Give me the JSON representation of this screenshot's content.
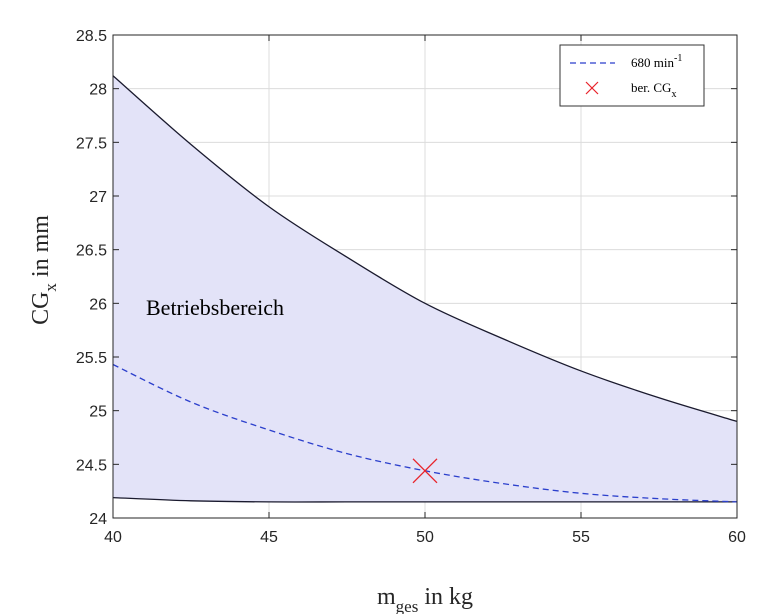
{
  "chart_data": {
    "type": "line",
    "xlabel": {
      "main": "m",
      "sub": "ges",
      "rest": " in kg"
    },
    "ylabel": {
      "main": "CG",
      "sub": "x",
      "rest": " in mm"
    },
    "xlim": [
      40,
      60
    ],
    "ylim": [
      24,
      28.5
    ],
    "xticks": [
      40,
      45,
      50,
      55,
      60
    ],
    "yticks": [
      24,
      24.5,
      25,
      25.5,
      26,
      26.5,
      27,
      27.5,
      28,
      28.5
    ],
    "grid": true,
    "legend_position": "top-right",
    "region": {
      "label": "Betriebsbereich",
      "upper": {
        "x": [
          40,
          42.5,
          45,
          47.5,
          50,
          52.5,
          55,
          57.5,
          60
        ],
        "y": [
          28.12,
          27.48,
          26.9,
          26.43,
          26.0,
          25.67,
          25.37,
          25.12,
          24.9
        ]
      },
      "lower": {
        "x": [
          40,
          42.5,
          45,
          47.5,
          50,
          52.5,
          55,
          57.5,
          60
        ],
        "y": [
          24.19,
          24.16,
          24.15,
          24.15,
          24.15,
          24.15,
          24.15,
          24.15,
          24.15
        ]
      },
      "fill_color": "#e3e3f8",
      "line_color": "#1a1a2e"
    },
    "series": [
      {
        "name": {
          "main": "680 min",
          "sup": "-1"
        },
        "style": "dashed",
        "color": "#2b3fcc",
        "x": [
          40,
          42.5,
          45,
          47.5,
          50,
          52.5,
          55,
          57.5,
          60
        ],
        "y": [
          25.43,
          25.08,
          24.82,
          24.6,
          24.44,
          24.32,
          24.23,
          24.18,
          24.15
        ]
      }
    ],
    "markers": [
      {
        "name": {
          "main": "ber. CG",
          "sub": "x"
        },
        "symbol": "x",
        "color": "#e8222a",
        "x": 50,
        "y": 24.44
      }
    ]
  }
}
